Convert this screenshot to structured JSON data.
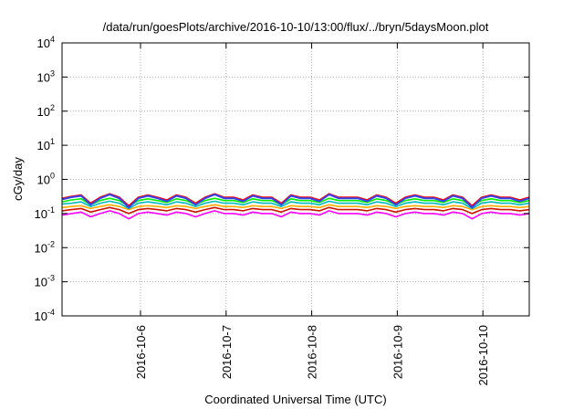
{
  "chart_data": {
    "type": "line",
    "title": "/data/run/goesPlots/archive/2016-10-10/13:00/flux/../bryn/5daysMoon.plot",
    "xlabel": "Coordinated Universal Time (UTC)",
    "ylabel": "cGy/day",
    "x_range": [
      "2016-10-05 02:00",
      "2016-10-10 13:00"
    ],
    "ylim": [
      0.0001,
      10000
    ],
    "y_scale": "log",
    "grid": true,
    "x_ticks": [
      "2016-10-6",
      "2016-10-7",
      "2016-10-8",
      "2016-10-9",
      "2016-10-10"
    ],
    "y_ticks": [
      {
        "base": "10",
        "exp": "-4"
      },
      {
        "base": "10",
        "exp": "-3"
      },
      {
        "base": "10",
        "exp": "-2"
      },
      {
        "base": "10",
        "exp": "-1"
      },
      {
        "base": "10",
        "exp": "0"
      },
      {
        "base": "10",
        "exp": "1"
      },
      {
        "base": "10",
        "exp": "2"
      },
      {
        "base": "10",
        "exp": "3"
      },
      {
        "base": "10",
        "exp": "4"
      }
    ],
    "series": [
      {
        "color": "#ff00ff",
        "base": 0.1,
        "values": [
          0.09,
          0.1,
          0.11,
          0.08,
          0.1,
          0.12,
          0.1,
          0.07,
          0.1,
          0.11,
          0.1,
          0.09,
          0.11,
          0.1,
          0.08,
          0.1,
          0.12,
          0.1,
          0.1,
          0.09,
          0.11,
          0.1,
          0.1,
          0.08,
          0.11,
          0.1,
          0.1,
          0.09,
          0.12,
          0.1,
          0.1,
          0.1,
          0.09,
          0.11,
          0.1,
          0.08,
          0.1,
          0.11,
          0.1,
          0.1,
          0.09,
          0.11,
          0.1,
          0.07,
          0.1,
          0.11,
          0.1,
          0.1,
          0.09,
          0.1
        ]
      },
      {
        "color": "#cc1100",
        "base": 0.13,
        "values": [
          0.12,
          0.13,
          0.14,
          0.11,
          0.13,
          0.15,
          0.13,
          0.1,
          0.13,
          0.14,
          0.13,
          0.12,
          0.14,
          0.13,
          0.11,
          0.13,
          0.15,
          0.13,
          0.13,
          0.12,
          0.14,
          0.13,
          0.13,
          0.11,
          0.14,
          0.13,
          0.13,
          0.12,
          0.15,
          0.13,
          0.13,
          0.13,
          0.12,
          0.14,
          0.13,
          0.11,
          0.13,
          0.14,
          0.13,
          0.13,
          0.12,
          0.14,
          0.13,
          0.1,
          0.13,
          0.14,
          0.13,
          0.13,
          0.12,
          0.13
        ]
      },
      {
        "color": "#ffaa00",
        "base": 0.16,
        "values": [
          0.15,
          0.16,
          0.17,
          0.14,
          0.16,
          0.18,
          0.16,
          0.13,
          0.16,
          0.17,
          0.16,
          0.15,
          0.17,
          0.16,
          0.14,
          0.16,
          0.18,
          0.16,
          0.16,
          0.15,
          0.17,
          0.16,
          0.16,
          0.14,
          0.17,
          0.16,
          0.16,
          0.15,
          0.18,
          0.16,
          0.16,
          0.16,
          0.15,
          0.17,
          0.16,
          0.14,
          0.16,
          0.17,
          0.16,
          0.16,
          0.15,
          0.17,
          0.16,
          0.13,
          0.16,
          0.17,
          0.16,
          0.16,
          0.15,
          0.16
        ]
      },
      {
        "color": "#00bbbb",
        "base": 0.2,
        "values": [
          0.19,
          0.2,
          0.22,
          0.16,
          0.2,
          0.23,
          0.2,
          0.14,
          0.2,
          0.22,
          0.2,
          0.18,
          0.22,
          0.2,
          0.16,
          0.2,
          0.23,
          0.2,
          0.2,
          0.18,
          0.22,
          0.2,
          0.2,
          0.16,
          0.22,
          0.2,
          0.2,
          0.18,
          0.23,
          0.2,
          0.2,
          0.2,
          0.18,
          0.22,
          0.2,
          0.16,
          0.2,
          0.22,
          0.2,
          0.2,
          0.18,
          0.22,
          0.2,
          0.14,
          0.2,
          0.22,
          0.2,
          0.2,
          0.18,
          0.2
        ]
      },
      {
        "color": "#00ee00",
        "base": 0.24,
        "values": [
          0.22,
          0.25,
          0.27,
          0.18,
          0.24,
          0.28,
          0.24,
          0.16,
          0.24,
          0.27,
          0.24,
          0.21,
          0.27,
          0.24,
          0.18,
          0.24,
          0.28,
          0.24,
          0.24,
          0.21,
          0.27,
          0.24,
          0.24,
          0.18,
          0.27,
          0.24,
          0.24,
          0.21,
          0.28,
          0.24,
          0.24,
          0.24,
          0.21,
          0.27,
          0.24,
          0.18,
          0.24,
          0.27,
          0.24,
          0.24,
          0.21,
          0.27,
          0.24,
          0.16,
          0.24,
          0.27,
          0.24,
          0.24,
          0.21,
          0.24
        ]
      },
      {
        "color": "#ff0000",
        "base": 0.3,
        "values": [
          0.28,
          0.32,
          0.35,
          0.2,
          0.3,
          0.38,
          0.3,
          0.17,
          0.3,
          0.35,
          0.3,
          0.25,
          0.35,
          0.3,
          0.2,
          0.3,
          0.38,
          0.3,
          0.3,
          0.25,
          0.35,
          0.3,
          0.3,
          0.2,
          0.35,
          0.3,
          0.3,
          0.25,
          0.38,
          0.3,
          0.3,
          0.3,
          0.25,
          0.35,
          0.3,
          0.2,
          0.3,
          0.35,
          0.3,
          0.3,
          0.25,
          0.35,
          0.3,
          0.17,
          0.3,
          0.35,
          0.3,
          0.3,
          0.25,
          0.3
        ]
      },
      {
        "color": "#3344ee",
        "base": 0.28,
        "values": [
          0.26,
          0.3,
          0.33,
          0.18,
          0.28,
          0.36,
          0.28,
          0.15,
          0.28,
          0.33,
          0.28,
          0.23,
          0.33,
          0.28,
          0.18,
          0.28,
          0.36,
          0.28,
          0.28,
          0.23,
          0.33,
          0.28,
          0.28,
          0.18,
          0.33,
          0.28,
          0.28,
          0.23,
          0.36,
          0.28,
          0.28,
          0.28,
          0.23,
          0.33,
          0.28,
          0.18,
          0.28,
          0.33,
          0.28,
          0.28,
          0.23,
          0.33,
          0.28,
          0.15,
          0.28,
          0.33,
          0.28,
          0.28,
          0.23,
          0.28
        ]
      }
    ]
  }
}
